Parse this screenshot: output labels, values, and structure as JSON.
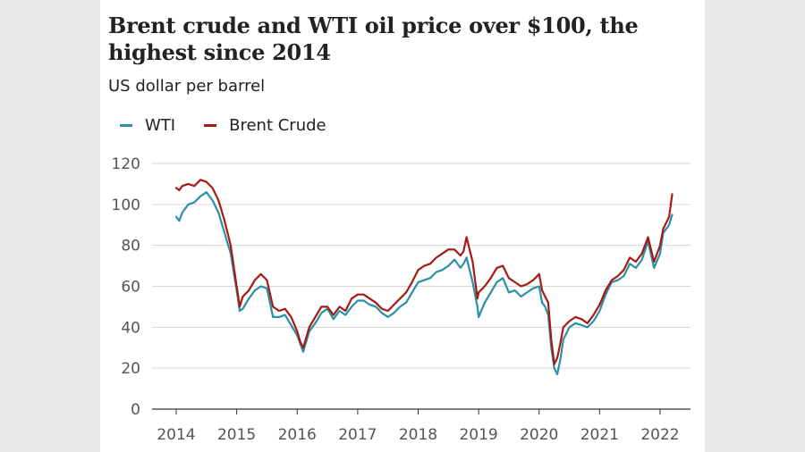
{
  "title": "Brent crude and WTI oil price over $100, the highest since 2014",
  "subtitle": "US dollar per barrel",
  "colors": {
    "wti": "#2a8fa8",
    "brent": "#a51a13",
    "grid": "#d6d6d6",
    "axis": "#333333"
  },
  "chart_data": {
    "type": "line",
    "title": "Brent crude and WTI oil price over $100, the highest since 2014",
    "subtitle": "US dollar per barrel",
    "xlabel": "",
    "ylabel": "",
    "xlim": [
      2014.0,
      2022.45
    ],
    "ylim": [
      0,
      120
    ],
    "y_ticks": [
      0,
      20,
      40,
      60,
      80,
      100,
      120
    ],
    "x_ticks": [
      "2014",
      "2015",
      "2016",
      "2017",
      "2018",
      "2019",
      "2020",
      "2021",
      "2022"
    ],
    "grid": true,
    "legend": "top-left",
    "series": [
      {
        "name": "WTI",
        "color": "#2a8fa8",
        "x": [
          2014.0,
          2014.05,
          2014.1,
          2014.2,
          2014.3,
          2014.4,
          2014.5,
          2014.6,
          2014.7,
          2014.8,
          2014.9,
          2015.0,
          2015.05,
          2015.1,
          2015.2,
          2015.3,
          2015.4,
          2015.5,
          2015.6,
          2015.7,
          2015.8,
          2015.9,
          2016.0,
          2016.05,
          2016.1,
          2016.2,
          2016.3,
          2016.4,
          2016.5,
          2016.6,
          2016.7,
          2016.8,
          2016.9,
          2017.0,
          2017.1,
          2017.2,
          2017.3,
          2017.4,
          2017.5,
          2017.6,
          2017.7,
          2017.8,
          2017.9,
          2018.0,
          2018.1,
          2018.2,
          2018.3,
          2018.4,
          2018.5,
          2018.6,
          2018.7,
          2018.75,
          2018.8,
          2018.9,
          2018.98,
          2019.0,
          2019.1,
          2019.2,
          2019.3,
          2019.4,
          2019.5,
          2019.6,
          2019.7,
          2019.8,
          2019.9,
          2020.0,
          2020.05,
          2020.1,
          2020.15,
          2020.2,
          2020.25,
          2020.3,
          2020.35,
          2020.4,
          2020.5,
          2020.6,
          2020.7,
          2020.8,
          2020.9,
          2021.0,
          2021.1,
          2021.2,
          2021.3,
          2021.4,
          2021.5,
          2021.6,
          2021.7,
          2021.8,
          2021.9,
          2022.0,
          2022.05,
          2022.1,
          2022.15,
          2022.2
        ],
        "values": [
          94,
          92,
          96,
          100,
          101,
          104,
          106,
          102,
          96,
          86,
          76,
          58,
          48,
          49,
          54,
          58,
          60,
          59,
          45,
          45,
          46,
          41,
          36,
          32,
          28,
          38,
          42,
          47,
          49,
          44,
          48,
          46,
          50,
          53,
          53,
          51,
          50,
          47,
          45,
          47,
          50,
          52,
          57,
          62,
          63,
          64,
          67,
          68,
          70,
          73,
          69,
          71,
          74,
          62,
          50,
          45,
          52,
          57,
          62,
          64,
          57,
          58,
          55,
          57,
          59,
          60,
          52,
          50,
          46,
          30,
          20,
          17,
          24,
          34,
          40,
          42,
          41,
          40,
          43,
          48,
          56,
          62,
          63,
          65,
          71,
          69,
          73,
          82,
          69,
          76,
          86,
          88,
          90,
          95
        ]
      },
      {
        "name": "Brent Crude",
        "color": "#a51a13",
        "x": [
          2014.0,
          2014.05,
          2014.1,
          2014.2,
          2014.3,
          2014.4,
          2014.5,
          2014.6,
          2014.7,
          2014.8,
          2014.9,
          2015.0,
          2015.05,
          2015.1,
          2015.2,
          2015.3,
          2015.4,
          2015.5,
          2015.6,
          2015.7,
          2015.8,
          2015.9,
          2016.0,
          2016.05,
          2016.1,
          2016.2,
          2016.3,
          2016.4,
          2016.5,
          2016.6,
          2016.7,
          2016.8,
          2016.9,
          2017.0,
          2017.1,
          2017.2,
          2017.3,
          2017.4,
          2017.5,
          2017.6,
          2017.7,
          2017.8,
          2017.9,
          2018.0,
          2018.1,
          2018.2,
          2018.3,
          2018.4,
          2018.5,
          2018.6,
          2018.7,
          2018.75,
          2018.8,
          2018.9,
          2018.98,
          2019.0,
          2019.1,
          2019.2,
          2019.3,
          2019.4,
          2019.5,
          2019.6,
          2019.7,
          2019.8,
          2019.9,
          2020.0,
          2020.05,
          2020.1,
          2020.15,
          2020.2,
          2020.25,
          2020.3,
          2020.35,
          2020.4,
          2020.5,
          2020.6,
          2020.7,
          2020.8,
          2020.9,
          2021.0,
          2021.1,
          2021.2,
          2021.3,
          2021.4,
          2021.5,
          2021.6,
          2021.7,
          2021.8,
          2021.9,
          2022.0,
          2022.05,
          2022.1,
          2022.15,
          2022.2
        ],
        "values": [
          108,
          107,
          109,
          110,
          109,
          112,
          111,
          108,
          102,
          92,
          80,
          60,
          50,
          55,
          58,
          63,
          66,
          63,
          50,
          48,
          49,
          45,
          38,
          33,
          30,
          40,
          45,
          50,
          50,
          46,
          50,
          48,
          54,
          56,
          56,
          54,
          52,
          49,
          48,
          51,
          54,
          57,
          62,
          68,
          70,
          71,
          74,
          76,
          78,
          78,
          75,
          77,
          84,
          72,
          54,
          57,
          60,
          64,
          69,
          70,
          64,
          62,
          60,
          61,
          63,
          66,
          58,
          55,
          52,
          34,
          22,
          25,
          32,
          40,
          43,
          45,
          44,
          42,
          46,
          51,
          58,
          63,
          65,
          68,
          74,
          72,
          76,
          84,
          72,
          80,
          88,
          91,
          94,
          105
        ]
      }
    ]
  }
}
